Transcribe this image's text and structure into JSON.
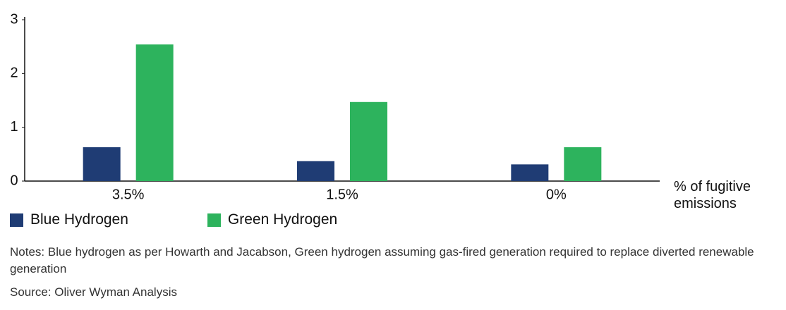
{
  "chart_data": {
    "type": "bar",
    "categories": [
      "3.5%",
      "1.5%",
      "0%"
    ],
    "x_label": "% of fugitive emissions",
    "series": [
      {
        "name": "Blue Hydrogen",
        "color": "#1f3c74",
        "values": [
          0.63,
          0.37,
          0.31
        ]
      },
      {
        "name": "Green Hydrogen",
        "color": "#2db35d",
        "values": [
          2.54,
          1.47,
          0.63
        ]
      }
    ],
    "ylim": [
      0,
      3
    ],
    "yticks": [
      0,
      1,
      2,
      3
    ],
    "grid": false,
    "notes": "Notes: Blue hydrogen as per Howarth and Jacabson, Green hydrogen assuming gas-fired generation required to replace diverted renewable generation",
    "source": "Source: Oliver Wyman Analysis"
  }
}
